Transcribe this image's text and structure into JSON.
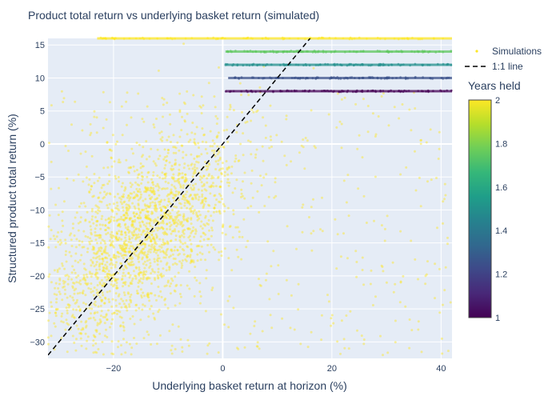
{
  "chart_data": {
    "type": "scatter",
    "title": "Product total return vs underlying basket return (simulated)",
    "xlabel": "Underlying basket return at horizon (%)",
    "ylabel": "Structured product total return (%)",
    "xlim": [
      -32,
      42
    ],
    "ylim": [
      -32.5,
      16
    ],
    "x_ticks": [
      -20,
      0,
      20,
      40
    ],
    "y_ticks": [
      -30,
      -25,
      -20,
      -15,
      -10,
      -5,
      0,
      5,
      10,
      15
    ],
    "grid": true,
    "legend": {
      "placement": "top-right",
      "entries": [
        "Simulations",
        "1:1 line"
      ]
    },
    "colorbar": {
      "title": "Years held",
      "min": 1,
      "max": 2,
      "ticks": [
        1,
        1.2,
        1.4,
        1.6,
        1.8,
        2
      ],
      "colorscale": [
        "#440154",
        "#482878",
        "#3e4989",
        "#31688e",
        "#26828e",
        "#1f9e89",
        "#35b779",
        "#6ece58",
        "#b5de2b",
        "#fde725"
      ]
    },
    "series": [
      {
        "type": "scatter",
        "role": "early-redemption bands",
        "bands": [
          {
            "y": 16,
            "x_from": -23,
            "x_to": 42,
            "years": 2
          },
          {
            "y": 14,
            "x_from": 0.5,
            "x_to": 42,
            "years": 1.75
          },
          {
            "y": 12,
            "x_from": 0.5,
            "x_to": 42,
            "years": 1.5
          },
          {
            "y": 10,
            "x_from": 1,
            "x_to": 42,
            "years": 1.25
          },
          {
            "y": 8,
            "x_from": 0.5,
            "x_to": 42,
            "years": 1
          }
        ]
      },
      {
        "type": "scatter",
        "role": "held to maturity cloud",
        "years": 2,
        "center_x": -15,
        "center_y": -14,
        "x_range": [
          -32,
          42
        ],
        "y_range": [
          -32.5,
          16
        ]
      },
      {
        "type": "line",
        "role": "reference",
        "x": [
          -32,
          42
        ],
        "y": [
          -32,
          42
        ]
      }
    ]
  }
}
